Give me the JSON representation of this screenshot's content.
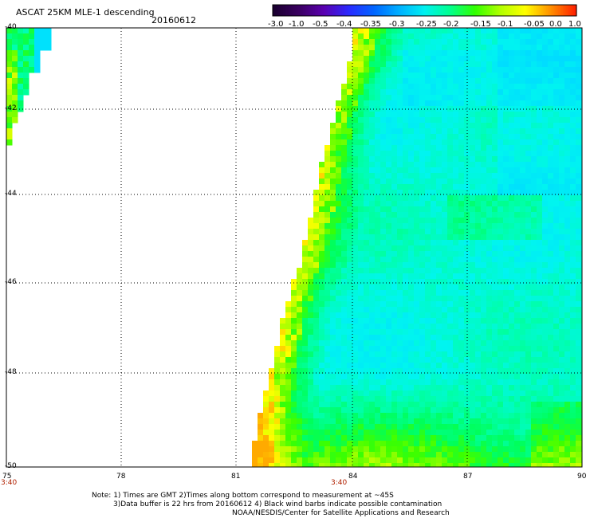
{
  "header": {
    "title": "ASCAT 25KM MLE-1 descending",
    "date": "20160612"
  },
  "colorbar": {
    "tick_labels": [
      "-3.0",
      "-1.0",
      "-0.5",
      "-0.4",
      "-0.35",
      "-0.3",
      "-0.25",
      "-0.2",
      "-0.15",
      "-0.1",
      "-0.05",
      "0.0",
      "1.0"
    ],
    "colors": [
      "#1a0030",
      "#3a0060",
      "#5a00b0",
      "#2a2aff",
      "#0066ff",
      "#00b0ff",
      "#00f0f0",
      "#00ff90",
      "#30ff00",
      "#b0ff00",
      "#ffff00",
      "#ff9000",
      "#ff2000"
    ]
  },
  "map": {
    "lat_labels": [
      "-40",
      "-42",
      "-44",
      "-46",
      "-48",
      "-50"
    ],
    "lon_labels": [
      "75",
      "78",
      "81",
      "84",
      "87",
      "90"
    ],
    "time_labels": [
      "3:40",
      "3:40"
    ]
  },
  "footer": {
    "line1": "Note: 1) Times are GMT 2)Times along bottom correspond to measurement at ~45S",
    "line2": "3)Data buffer is 22 hrs from 20160612 4) Black wind barbs indicate possible contamination",
    "line3": "NOAA/NESDIS/Center for Satellite Applications and Research"
  }
}
